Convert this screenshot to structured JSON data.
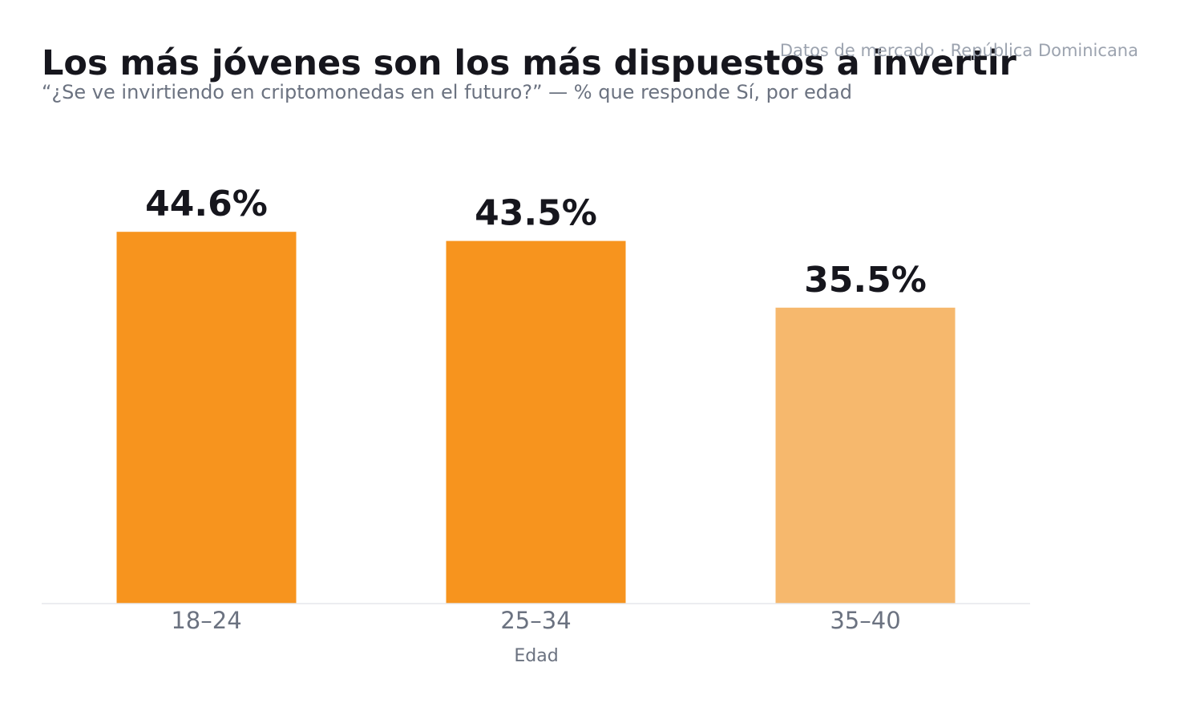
{
  "chart_data": {
    "type": "bar",
    "title": "Los más jóvenes son los más dispuestos a invertir",
    "subtitle": "“¿Se ve invirtiendo en criptomonedas en el futuro?” — % que responde Sí, por edad",
    "source": "Datos de mercado · República Dominicana",
    "xlabel": "Edad",
    "ylabel": "",
    "categories": [
      "18–24",
      "25–34",
      "35–40"
    ],
    "values": [
      44.6,
      43.5,
      35.5
    ],
    "value_labels": [
      "44.6%",
      "43.5%",
      "35.5%"
    ],
    "ylim": [
      0,
      48
    ],
    "grid": false,
    "colors": {
      "bar": "#f7941e",
      "bar_muted": "#f6b86d",
      "axis_line": "#e5e7eb"
    },
    "bar_colors": [
      "#f7941e",
      "#f7941e",
      "#f6b86d"
    ]
  }
}
